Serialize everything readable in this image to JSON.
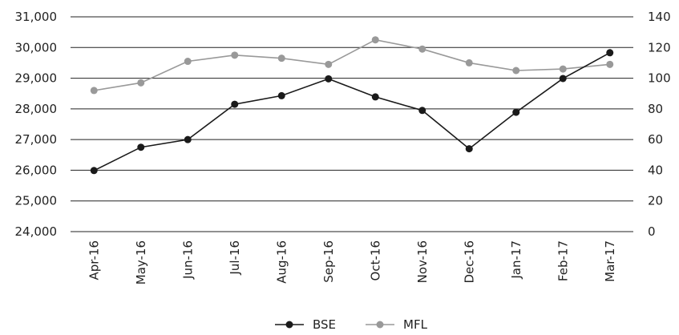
{
  "chart_data": {
    "type": "line",
    "categories": [
      "Apr-16",
      "May-16",
      "Jun-16",
      "Jul-16",
      "Aug-16",
      "Sep-16",
      "Oct-16",
      "Nov-16",
      "Dec-16",
      "Jan-17",
      "Feb-17",
      "Mar-17"
    ],
    "series": [
      {
        "name": "BSE",
        "axis": "left",
        "color": "#1a1a1a",
        "values": [
          25990,
          26750,
          27000,
          28150,
          28430,
          28980,
          28390,
          27950,
          26700,
          27890,
          28990,
          29830
        ]
      },
      {
        "name": "MFL",
        "axis": "right",
        "color": "#999999",
        "values": [
          92,
          97,
          111,
          115,
          113,
          109,
          125,
          119,
          110,
          105,
          106,
          109
        ]
      }
    ],
    "y_left": {
      "min": 24000,
      "max": 31000,
      "ticks": [
        "24,000",
        "25,000",
        "26,000",
        "27,000",
        "28,000",
        "29,000",
        "30,000",
        "31,000"
      ]
    },
    "y_right": {
      "min": 0,
      "max": 140,
      "ticks": [
        "0",
        "20",
        "40",
        "60",
        "80",
        "100",
        "120",
        "140"
      ]
    },
    "grid": true,
    "legend_position": "bottom-center"
  }
}
